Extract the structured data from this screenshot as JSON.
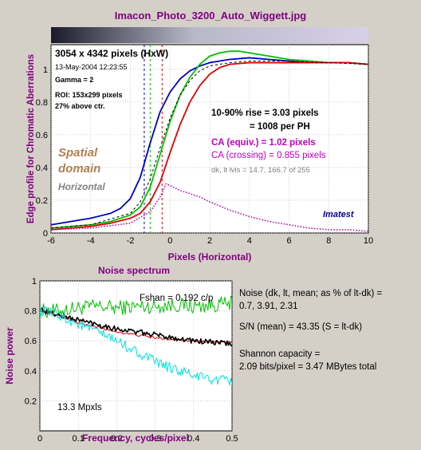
{
  "title": "Imacon_Photo_3200_Auto_Wiggett.jpg",
  "colors": {
    "background": "#d4d0c8",
    "plot_bg": "#ffffff",
    "title": "#800080",
    "axis_label": "#800080",
    "red": "#e00000",
    "green": "#00c000",
    "blue": "#0000c0",
    "black": "#000000",
    "magenta": "#c000c0",
    "cyan": "#00e0e0",
    "spatial": "#b08050",
    "horizontal_label": "#808080",
    "imatest": "#0000a0"
  },
  "edge_info": {
    "dims": "3054 x 4342 pixels (HxW)",
    "date": "13-May-2004 12:23:55",
    "gamma": "Gamma = 2",
    "roi": "ROI: 153x299 pixels",
    "above": "27% above ctr.",
    "rise1": "10-90% rise = 3.03 pixels",
    "rise2": "= 1008 per PH",
    "ca_equiv": "CA (equiv.) = 1.02 pixels",
    "ca_cross": "CA (crossing) = 0.855 pixels",
    "lvls": "dk, lt lvls = 14.7, 166.7 of 255",
    "spatial1": "Spatial",
    "spatial2": "domain",
    "horizontal": "Horizontal",
    "imatest": "Imatest"
  },
  "noise_info": {
    "title": "Noise spectrum",
    "fshan": "Fshan = 0.192 c/p",
    "mpxls": "13.3 Mpxls",
    "n1": "Noise (dk, lt, mean; as % of lt-dk) =",
    "n2": "0.7,  3.91,  2.31",
    "sn": "S/N (mean) = 43.35  (S = lt-dk)",
    "sh1": "Shannon capacity =",
    "sh2": "2.09 bits/pixel = 3.47 MBytes total"
  },
  "chart_data": [
    {
      "type": "line",
      "name": "edge-profile",
      "xlabel": "Pixels (Horizontal)",
      "ylabel": "Edge profile for Chromatic Aberrations",
      "xlim": [
        -6,
        10
      ],
      "ylim": [
        0,
        1.15
      ],
      "xticks": [
        -6,
        -4,
        -2,
        0,
        2,
        4,
        6,
        8,
        10
      ],
      "yticks": [
        0,
        0.2,
        0.4,
        0.6,
        0.8,
        1
      ],
      "grid": true,
      "vlines": [
        {
          "x": -1.3,
          "color": "blue"
        },
        {
          "x": -1.0,
          "color": "green"
        },
        {
          "x": -0.4,
          "color": "red"
        }
      ],
      "series": [
        {
          "color": "blue",
          "style": "solid",
          "x": [
            -6,
            -5,
            -4,
            -3,
            -2.5,
            -2,
            -1.5,
            -1,
            -0.5,
            0,
            0.5,
            1,
            1.5,
            2,
            2.5,
            3,
            4,
            5,
            6,
            7,
            8,
            9,
            10
          ],
          "y": [
            0.05,
            0.07,
            0.09,
            0.12,
            0.15,
            0.21,
            0.34,
            0.55,
            0.74,
            0.86,
            0.94,
            0.99,
            1.02,
            1.04,
            1.05,
            1.06,
            1.07,
            1.06,
            1.05,
            1.04,
            1.04,
            1.04,
            1.03
          ]
        },
        {
          "color": "green",
          "style": "solid",
          "x": [
            -6,
            -5,
            -4,
            -3,
            -2,
            -1.5,
            -1,
            -0.5,
            0,
            0.5,
            1,
            1.5,
            2,
            2.5,
            3,
            3.5,
            4,
            5,
            6,
            7,
            8,
            9,
            10
          ],
          "y": [
            0.03,
            0.04,
            0.05,
            0.07,
            0.11,
            0.16,
            0.28,
            0.48,
            0.68,
            0.84,
            0.95,
            1.03,
            1.08,
            1.1,
            1.11,
            1.11,
            1.1,
            1.08,
            1.06,
            1.05,
            1.04,
            1.04,
            1.03
          ]
        },
        {
          "color": "red",
          "style": "solid",
          "x": [
            -6,
            -5,
            -4,
            -3,
            -2,
            -1.5,
            -1,
            -0.5,
            0,
            0.5,
            1,
            1.5,
            2,
            2.5,
            3,
            4,
            5,
            6,
            7,
            8,
            9,
            10
          ],
          "y": [
            0.02,
            0.03,
            0.04,
            0.06,
            0.09,
            0.12,
            0.19,
            0.31,
            0.49,
            0.66,
            0.8,
            0.9,
            0.97,
            1.01,
            1.03,
            1.04,
            1.04,
            1.04,
            1.04,
            1.04,
            1.04,
            1.03
          ]
        },
        {
          "color": "black",
          "style": "dashed",
          "x": [
            -6,
            -4,
            -2,
            -1.5,
            -1,
            -0.5,
            0,
            0.5,
            1,
            1.5,
            2,
            3,
            4,
            6,
            8,
            10
          ],
          "y": [
            0.03,
            0.05,
            0.12,
            0.19,
            0.33,
            0.52,
            0.7,
            0.84,
            0.93,
            0.99,
            1.02,
            1.04,
            1.05,
            1.05,
            1.04,
            1.03
          ]
        },
        {
          "color": "magenta",
          "style": "dotted",
          "x": [
            -6,
            -4,
            -2,
            -1,
            -0.5,
            -0.2,
            0,
            0.5,
            1,
            1.5,
            2,
            3,
            4,
            5,
            6,
            7,
            8,
            9,
            10
          ],
          "y": [
            0.02,
            0.03,
            0.06,
            0.13,
            0.22,
            0.3,
            0.29,
            0.26,
            0.24,
            0.22,
            0.19,
            0.14,
            0.1,
            0.07,
            0.05,
            0.03,
            0.02,
            0.02,
            0.01
          ]
        }
      ]
    },
    {
      "type": "line",
      "name": "noise-spectrum",
      "title": "Noise spectrum",
      "xlabel": "Frequency, cycles/pixel",
      "ylabel": "Noise power",
      "xlim": [
        0,
        0.5
      ],
      "ylim": [
        0,
        1
      ],
      "xticks": [
        0,
        0.1,
        0.2,
        0.3,
        0.4,
        0.5
      ],
      "yticks": [
        0.2,
        0.4,
        0.6,
        0.8,
        1
      ],
      "grid": true,
      "series": [
        {
          "color": "green",
          "style": "noisy",
          "x": [
            0,
            0.05,
            0.1,
            0.15,
            0.2,
            0.25,
            0.3,
            0.35,
            0.4,
            0.45,
            0.5
          ],
          "y": [
            0.8,
            0.8,
            0.82,
            0.83,
            0.82,
            0.83,
            0.83,
            0.84,
            0.83,
            0.84,
            0.85
          ]
        },
        {
          "color": "red",
          "style": "noisy",
          "x": [
            0,
            0.05,
            0.1,
            0.15,
            0.2,
            0.25,
            0.3,
            0.35,
            0.4,
            0.45,
            0.5
          ],
          "y": [
            0.8,
            0.77,
            0.72,
            0.69,
            0.66,
            0.64,
            0.62,
            0.61,
            0.6,
            0.59,
            0.59
          ]
        },
        {
          "color": "black",
          "style": "noisy",
          "x": [
            0,
            0.05,
            0.1,
            0.15,
            0.2,
            0.25,
            0.3,
            0.35,
            0.4,
            0.45,
            0.5
          ],
          "y": [
            0.81,
            0.77,
            0.74,
            0.71,
            0.68,
            0.66,
            0.64,
            0.62,
            0.6,
            0.59,
            0.58
          ]
        },
        {
          "color": "cyan",
          "style": "noisy",
          "x": [
            0,
            0.05,
            0.1,
            0.15,
            0.2,
            0.25,
            0.3,
            0.35,
            0.4,
            0.45,
            0.5
          ],
          "y": [
            0.8,
            0.77,
            0.71,
            0.66,
            0.6,
            0.53,
            0.46,
            0.41,
            0.37,
            0.34,
            0.33
          ]
        }
      ]
    }
  ]
}
